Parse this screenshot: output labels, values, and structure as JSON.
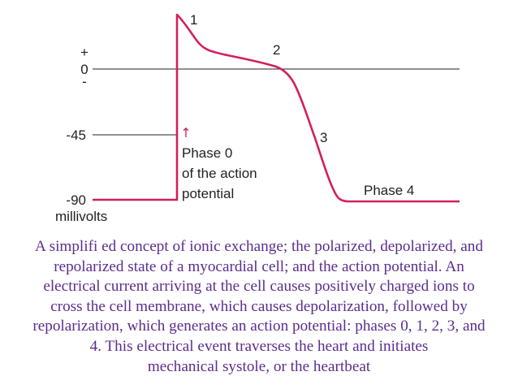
{
  "colors": {
    "curve": "#d21f5f",
    "axis_line": "#231f20",
    "text": "#231f20",
    "caption": "#5b2d8e"
  },
  "diagram": {
    "y_labels": {
      "plus": "+",
      "zero": "0",
      "minus": "-",
      "neg45": "-45",
      "neg90": "-90",
      "unit": "millivolts"
    },
    "phase_numbers": {
      "p1": "1",
      "p2": "2",
      "p3": "3"
    },
    "phase0_label": [
      "Phase 0",
      "of the action",
      "potential"
    ],
    "phase4_label": "Phase 4",
    "arrow_glyph": "↑"
  },
  "caption": [
    "A simplifi ed concept of ionic exchange; the polarized, depolarized, and",
    "repolarized state of a myocardial cell; and the action potential. An",
    "electrical current arriving at the cell causes positively charged ions to",
    "cross the cell membrane, which causes depolarization, followed by",
    "repolarization, which generates an action potential: phases 0, 1, 2, 3, and",
    "4. This electrical event traverses the heart and initiates",
    "mechanical systole, or the heartbeat"
  ]
}
